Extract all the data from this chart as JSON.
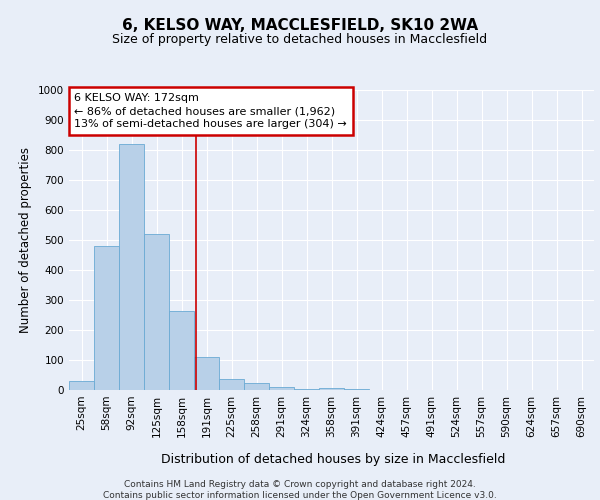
{
  "title": "6, KELSO WAY, MACCLESFIELD, SK10 2WA",
  "subtitle": "Size of property relative to detached houses in Macclesfield",
  "xlabel": "Distribution of detached houses by size in Macclesfield",
  "ylabel": "Number of detached properties",
  "categories": [
    "25sqm",
    "58sqm",
    "92sqm",
    "125sqm",
    "158sqm",
    "191sqm",
    "225sqm",
    "258sqm",
    "291sqm",
    "324sqm",
    "358sqm",
    "391sqm",
    "424sqm",
    "457sqm",
    "491sqm",
    "524sqm",
    "557sqm",
    "590sqm",
    "624sqm",
    "657sqm",
    "690sqm"
  ],
  "values": [
    30,
    480,
    820,
    520,
    265,
    110,
    38,
    22,
    10,
    5,
    8,
    5,
    0,
    0,
    0,
    0,
    0,
    0,
    0,
    0,
    0
  ],
  "bar_color": "#b8d0e8",
  "bar_edge_color": "#6aaad4",
  "vline_x": 4.57,
  "vline_color": "#cc0000",
  "ylim": [
    0,
    1000
  ],
  "yticks": [
    0,
    100,
    200,
    300,
    400,
    500,
    600,
    700,
    800,
    900,
    1000
  ],
  "annotation_text": "6 KELSO WAY: 172sqm\n← 86% of detached houses are smaller (1,962)\n13% of semi-detached houses are larger (304) →",
  "annotation_box_facecolor": "#ffffff",
  "annotation_box_edgecolor": "#cc0000",
  "footer_line1": "Contains HM Land Registry data © Crown copyright and database right 2024.",
  "footer_line2": "Contains public sector information licensed under the Open Government Licence v3.0.",
  "background_color": "#e8eef8",
  "plot_bg_color": "#e8eef8",
  "title_fontsize": 11,
  "subtitle_fontsize": 9,
  "tick_fontsize": 7.5,
  "ylabel_fontsize": 8.5,
  "xlabel_fontsize": 9,
  "annotation_fontsize": 8,
  "footer_fontsize": 6.5
}
